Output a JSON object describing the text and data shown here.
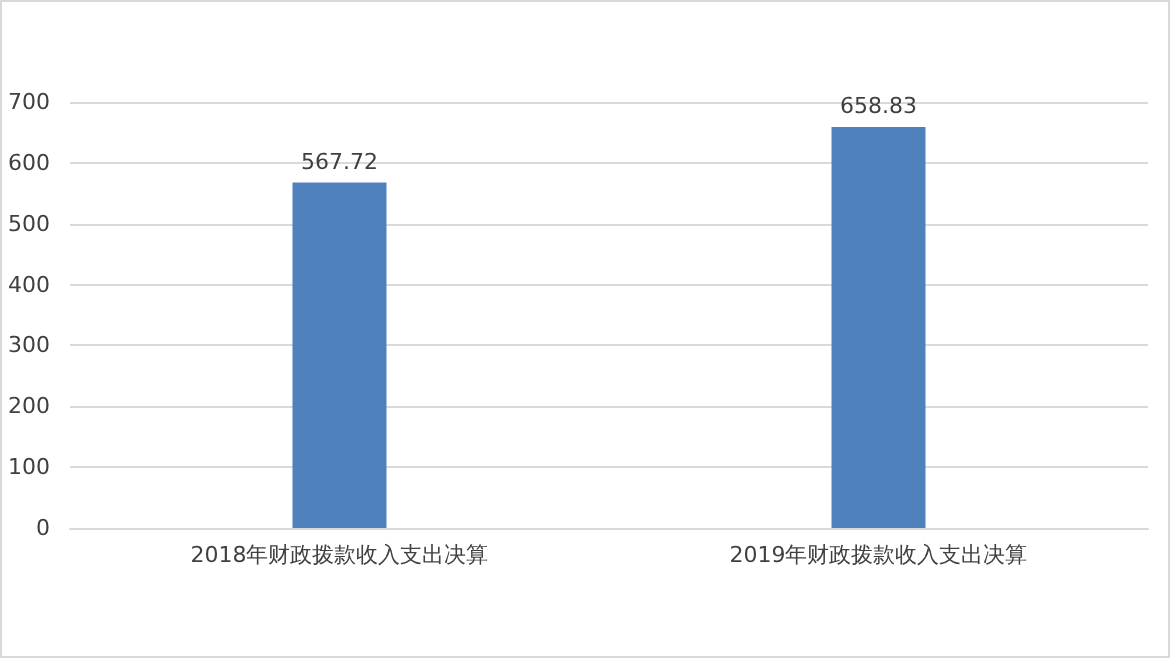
{
  "chart_data": {
    "type": "bar",
    "categories": [
      "2018年财政拨款收入支出决算",
      "2019年财政拨款收入支出决算"
    ],
    "values": [
      567.72,
      658.83
    ],
    "color": "#4f81bd",
    "ylim": [
      0,
      700
    ],
    "yticks": [
      0,
      100,
      200,
      300,
      400,
      500,
      600,
      700
    ],
    "grid": "y",
    "data_labels": true
  }
}
